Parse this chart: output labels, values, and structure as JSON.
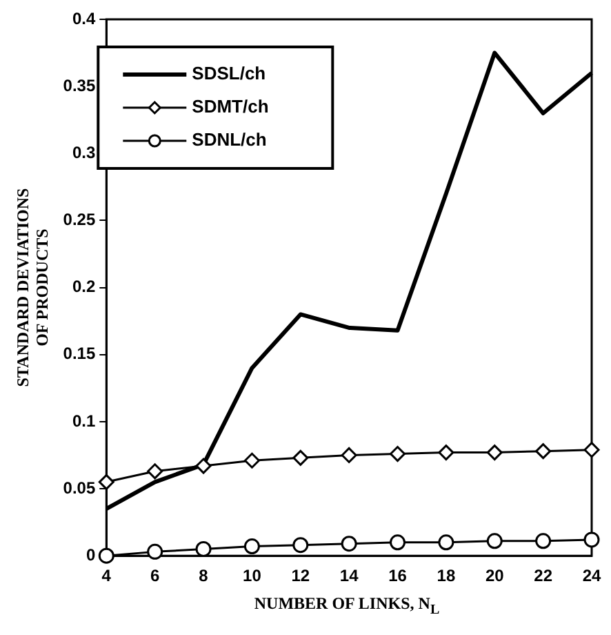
{
  "chart_data": {
    "type": "line",
    "xlabel": "NUMBER OF LINKS, N$_{L}$",
    "ylabel": "STANDARD DEVIATIONS OF PRODUCTS",
    "x": [
      4,
      6,
      8,
      10,
      12,
      14,
      16,
      18,
      20,
      22,
      24
    ],
    "xlim": [
      4,
      24
    ],
    "xticks": [
      4,
      6,
      8,
      10,
      12,
      14,
      16,
      18,
      20,
      22,
      24
    ],
    "ylim": [
      0,
      0.4
    ],
    "yticks": [
      0,
      0.05,
      0.1,
      0.15,
      0.2,
      0.25,
      0.3,
      0.35,
      0.4
    ],
    "legend": "top left",
    "grid": false,
    "series": [
      {
        "name": "SDSL/ch",
        "color": "#000000",
        "marker": "none",
        "values": [
          0.035,
          0.055,
          0.068,
          0.14,
          0.18,
          0.17,
          0.168,
          0.27,
          0.375,
          0.33,
          0.36
        ]
      },
      {
        "name": "SDMT/ch",
        "color": "#000000",
        "marker": "diamond",
        "values": [
          0.055,
          0.063,
          0.067,
          0.071,
          0.073,
          0.075,
          0.076,
          0.077,
          0.077,
          0.078,
          0.079
        ]
      },
      {
        "name": "SDNL/ch",
        "color": "#000000",
        "marker": "circle",
        "values": [
          0,
          0.003,
          0.005,
          0.007,
          0.008,
          0.009,
          0.01,
          0.01,
          0.011,
          0.011,
          0.012
        ]
      }
    ]
  }
}
